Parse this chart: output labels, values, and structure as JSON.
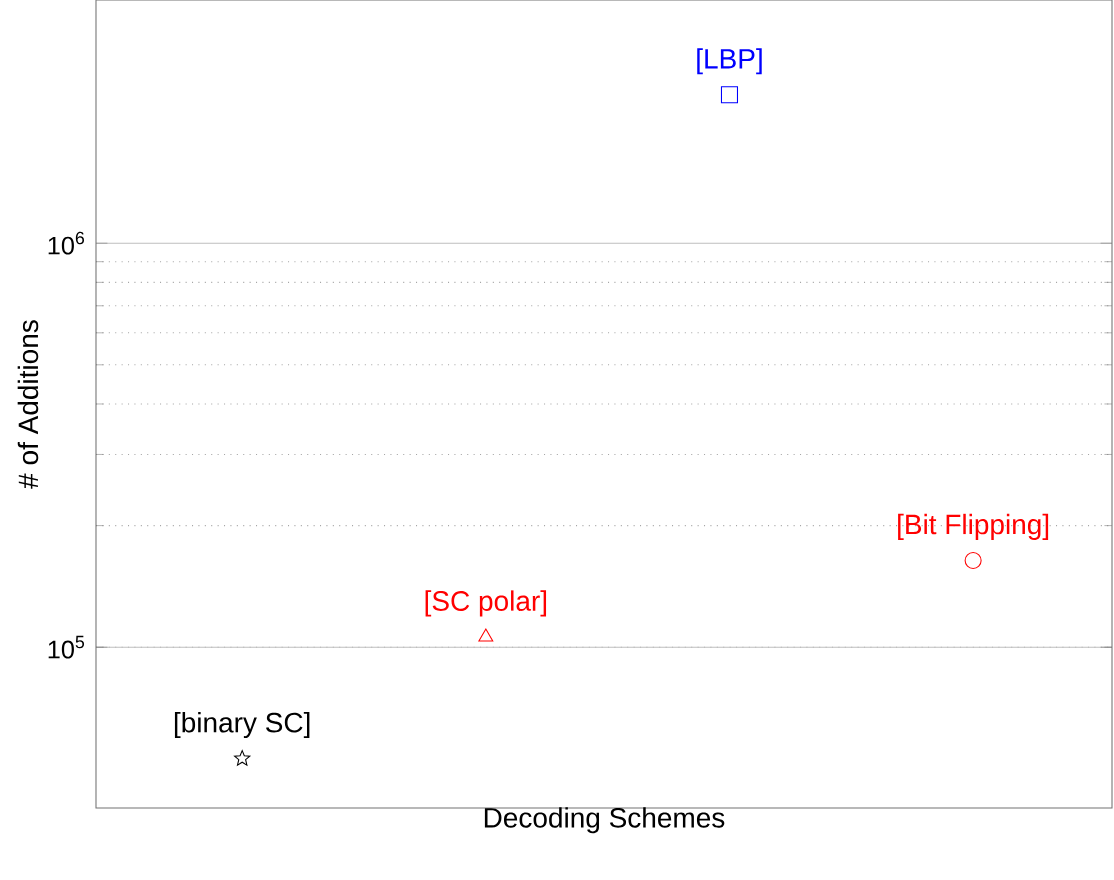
{
  "chart_data": {
    "type": "scatter",
    "xlabel": "Decoding Schemes",
    "ylabel": "# of Additions",
    "categories": [
      null,
      null,
      null,
      null
    ],
    "log": "y",
    "grid": "y",
    "ylim": [
      40000,
      4000000
    ],
    "yticks": [
      {
        "value": 100000,
        "label": "10$^{5}$"
      },
      {
        "value": 1000000,
        "label": "10$^{6}$"
      }
    ],
    "series": [
      {
        "name": "[binary SC]",
        "color": "#000000",
        "marker": "star",
        "values": [
          53000,
          null,
          null,
          null
        ]
      },
      {
        "name": "[SC polar]",
        "color": "#ff0000",
        "marker": "triangle",
        "values": [
          null,
          106000,
          null,
          null
        ]
      },
      {
        "name": "[LBP]",
        "color": "#0000ff",
        "marker": "square",
        "values": [
          null,
          null,
          2330000,
          null
        ]
      },
      {
        "name": "[Bit Flipping]",
        "color": "#ff0000",
        "marker": "circle",
        "values": [
          null,
          null,
          null,
          164000
        ]
      }
    ]
  }
}
